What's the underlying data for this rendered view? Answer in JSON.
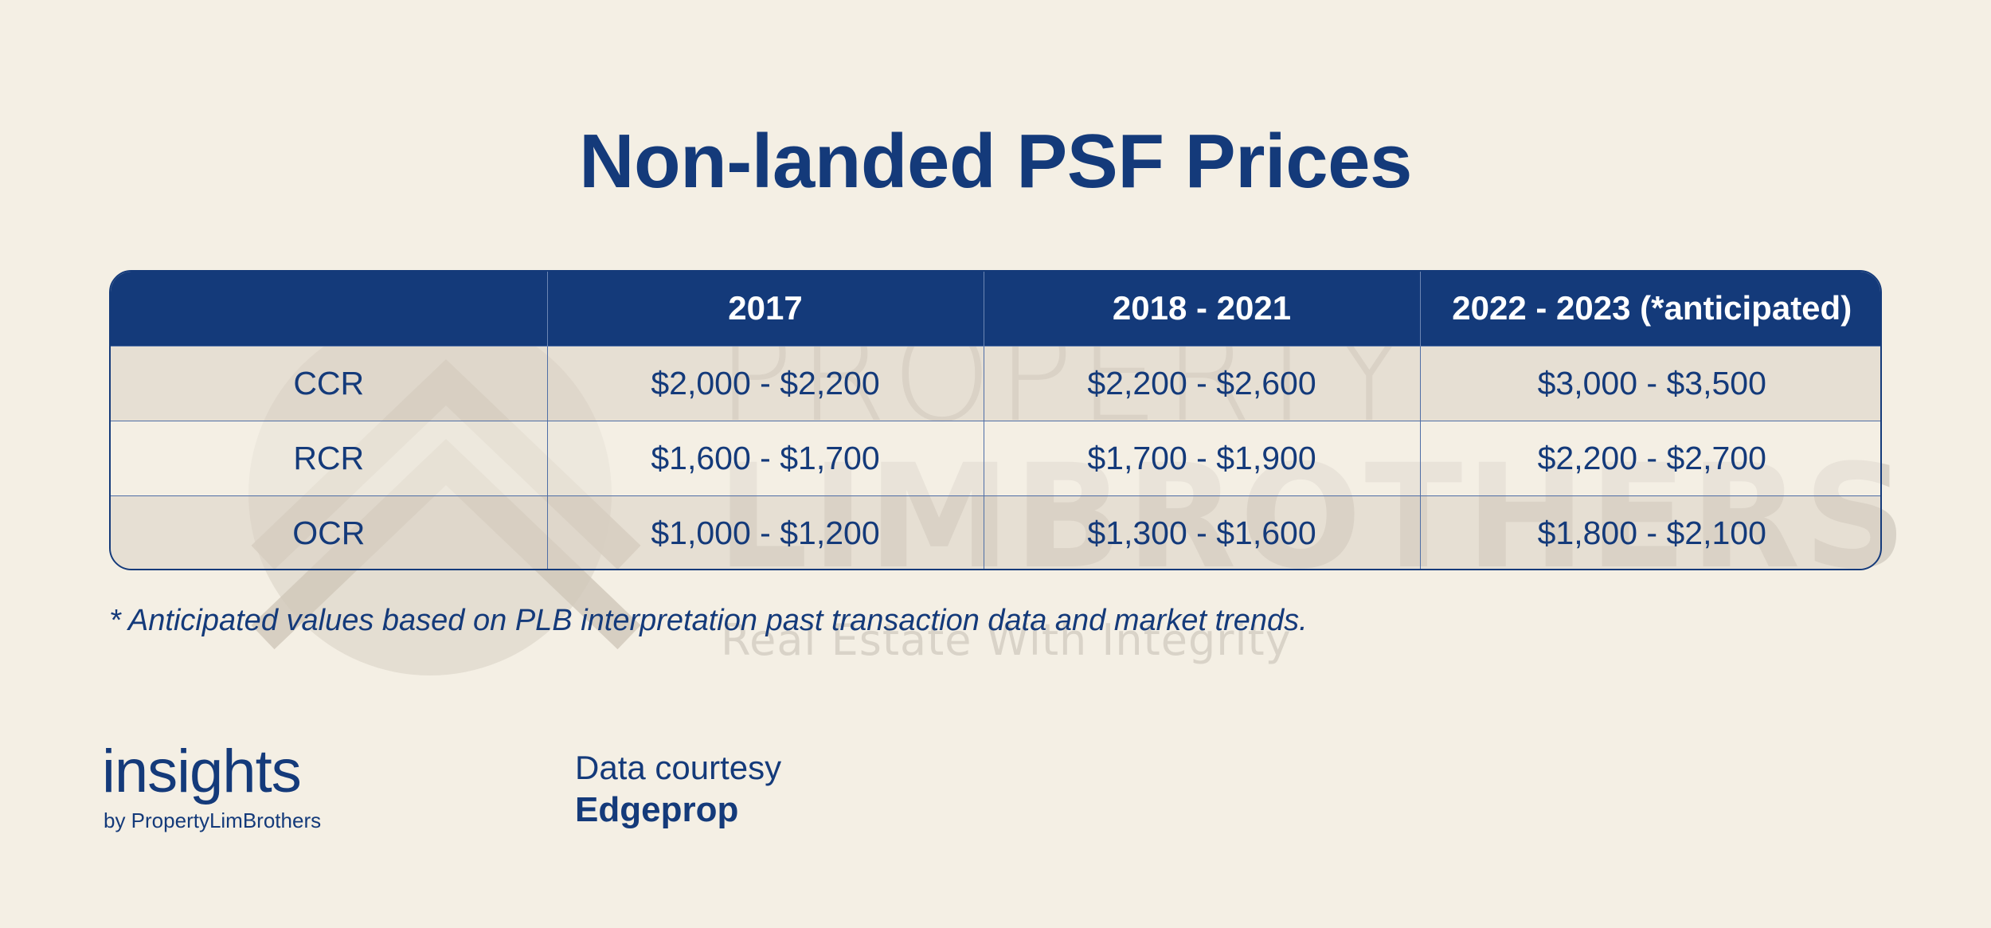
{
  "title": "Non-landed PSF Prices",
  "chart_data": {
    "type": "table",
    "columns": [
      "",
      "2017",
      "2018 - 2021",
      "2022 - 2023 (*anticipated)"
    ],
    "rows": [
      {
        "label": "CCR",
        "values": [
          "$2,000 - $2,200",
          "$2,200 - $2,600",
          "$3,000 - $3,500"
        ]
      },
      {
        "label": "RCR",
        "values": [
          "$1,600 - $1,700",
          "$1,700 - $1,900",
          "$2,200 - $2,700"
        ]
      },
      {
        "label": "OCR",
        "values": [
          "$1,000 - $1,200",
          "$1,300 - $1,600",
          "$1,800 - $2,100"
        ]
      }
    ]
  },
  "footnote": "* Anticipated values based on PLB interpretation past transaction data and market trends.",
  "watermark": {
    "line1": "PROPERTY",
    "line2": "LIMBROTHERS",
    "tagline": "Real Estate With Integrity"
  },
  "logo": {
    "word": "insights",
    "byline": "by PropertyLimBrothers"
  },
  "courtesy": {
    "label": "Data courtesy",
    "source": "Edgeprop"
  },
  "colors": {
    "navy": "#143a7a",
    "background": "#f4efe4",
    "row_shade": "#e7e1d6"
  }
}
